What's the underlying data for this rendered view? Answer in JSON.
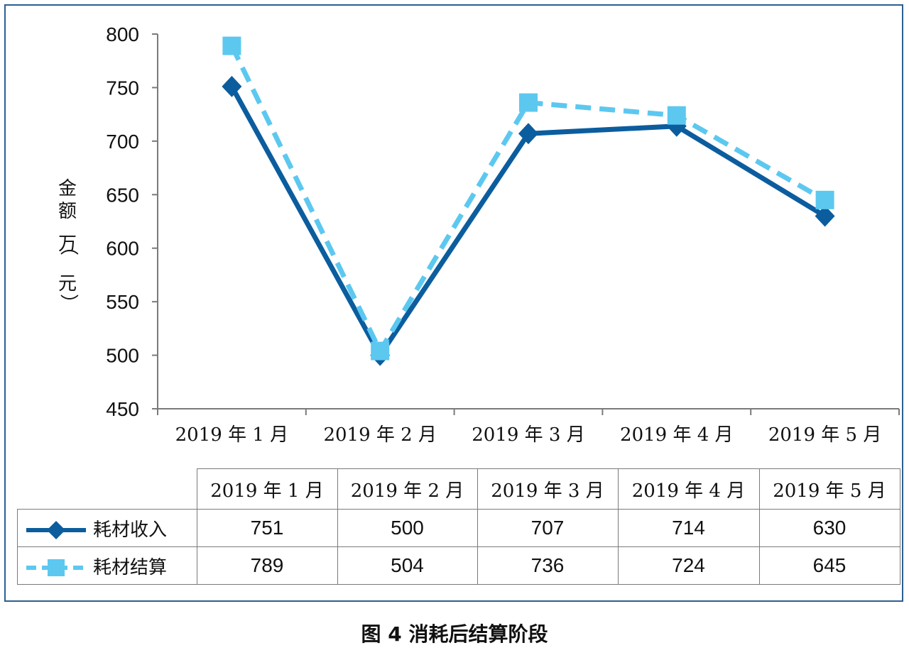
{
  "chart_data": {
    "type": "line",
    "categories": [
      "2019 年 1 月",
      "2019 年 2 月",
      "2019 年 3 月",
      "2019 年 4 月",
      "2019 年 5 月"
    ],
    "series": [
      {
        "name": "耗材收入",
        "values": [
          751,
          500,
          707,
          714,
          630
        ],
        "color": "#0b5d9e",
        "marker": "diamond",
        "line_style": "solid"
      },
      {
        "name": "耗材结算",
        "values": [
          789,
          504,
          736,
          724,
          645
        ],
        "color": "#5cc8f0",
        "marker": "square",
        "line_style": "dashed"
      }
    ],
    "ylabel": "金额（万元）",
    "ylabel_chars": [
      "金",
      "额",
      "（",
      "万",
      "元",
      "）"
    ],
    "ylim": [
      450,
      800
    ],
    "yticks": [
      450,
      500,
      550,
      600,
      650,
      700,
      750,
      800
    ],
    "grid": false,
    "legend": "data-table"
  },
  "caption": "图 4  消耗后结算阶段"
}
